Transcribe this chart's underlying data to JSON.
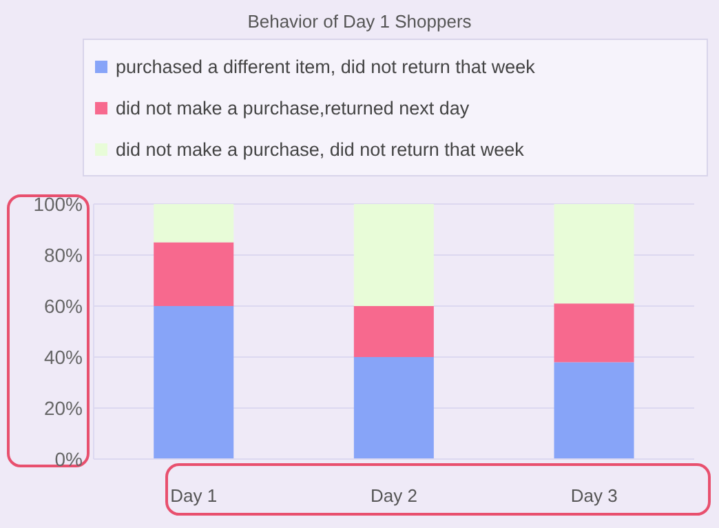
{
  "chart_data": {
    "type": "bar",
    "title": "Behavior of Day 1 Shoppers",
    "categories": [
      "Day 1",
      "Day 2",
      "Day 3"
    ],
    "stacked": true,
    "series": [
      {
        "name": "purchased a different item, did not return that week",
        "color": "#87a4f8",
        "values": [
          60,
          40,
          38
        ]
      },
      {
        "name": "did not make a purchase,returned next day",
        "color": "#f7698e",
        "values": [
          25,
          20,
          23
        ]
      },
      {
        "name": "did not make a purchase, did not return that week",
        "color": "#e8fcd8",
        "values": [
          15,
          40,
          39
        ]
      }
    ],
    "ylim": [
      0,
      100
    ],
    "yticks": [
      {
        "value": 0,
        "label": "0%"
      },
      {
        "value": 20,
        "label": "20%"
      },
      {
        "value": 40,
        "label": "40%"
      },
      {
        "value": 60,
        "label": "60%"
      },
      {
        "value": 80,
        "label": "80%"
      },
      {
        "value": 100,
        "label": "100%"
      }
    ],
    "grid": "y",
    "legend": "top"
  }
}
